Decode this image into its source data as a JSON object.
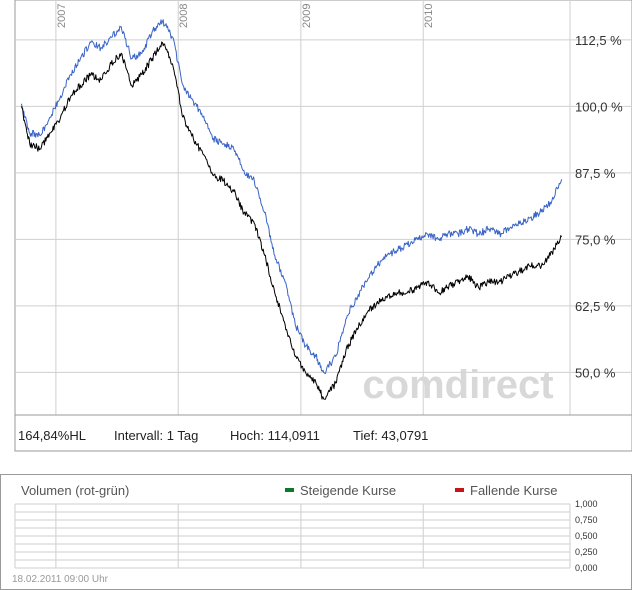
{
  "chart_data": [
    {
      "type": "line",
      "x": [
        "2006-09-20",
        "2006-10-15",
        "2006-11-15",
        "2006-12-15",
        "2007-01-15",
        "2007-02-15",
        "2007-03-15",
        "2007-04-15",
        "2007-05-15",
        "2007-06-15",
        "2007-07-15",
        "2007-08-15",
        "2007-09-15",
        "2007-10-15",
        "2007-11-15",
        "2007-12-15",
        "2008-01-15",
        "2008-02-15",
        "2008-03-15",
        "2008-04-15",
        "2008-05-15",
        "2008-06-15",
        "2008-07-15",
        "2008-08-15",
        "2008-09-15",
        "2008-10-15",
        "2008-11-15",
        "2008-12-15",
        "2009-01-15",
        "2009-02-15",
        "2009-03-10",
        "2009-04-15",
        "2009-05-15",
        "2009-06-15",
        "2009-07-15",
        "2009-08-15",
        "2009-09-15",
        "2009-10-15",
        "2009-11-15",
        "2009-12-15",
        "2010-01-15",
        "2010-02-15",
        "2010-03-15",
        "2010-04-15",
        "2010-05-15",
        "2010-06-15",
        "2010-07-15",
        "2010-08-15",
        "2010-09-15",
        "2010-10-15",
        "2010-11-15",
        "2010-12-15",
        "2011-01-15",
        "2011-02-18"
      ],
      "series": [
        {
          "color": "#3a64c8",
          "values": [
            100.5,
            95,
            94.5,
            98,
            102,
            106,
            109,
            112,
            111,
            113,
            115,
            109,
            110,
            114,
            116,
            113,
            104,
            101,
            98,
            94,
            93,
            92,
            88,
            86,
            80,
            72,
            67,
            59,
            55,
            53,
            50,
            53,
            60,
            64,
            67,
            70,
            72,
            73,
            74,
            75,
            76,
            75,
            76,
            76,
            77,
            76,
            77,
            76,
            77,
            78,
            79,
            80,
            82,
            86.3
          ]
        },
        {
          "color": "#000000",
          "values": [
            100,
            93,
            92,
            95,
            98,
            102,
            104,
            106,
            105,
            108,
            110,
            104,
            106,
            109,
            112,
            108,
            98,
            94,
            91,
            87,
            86,
            84,
            80,
            78,
            72,
            65,
            59,
            53,
            50,
            48,
            45,
            48,
            54,
            58,
            61,
            63,
            64,
            65,
            65,
            66,
            67,
            65,
            66,
            67,
            68,
            66,
            67,
            67,
            68,
            69,
            70,
            70,
            72,
            75.5
          ]
        }
      ],
      "ylim": [
        42,
        120
      ],
      "y_ticks": [
        "112,5 %",
        "100,0 %",
        "87,5 %",
        "75,0 %",
        "62,5 %",
        "50,0 %"
      ],
      "x_ticks": [
        "2007",
        "2008",
        "2009",
        "2010"
      ],
      "grid": true,
      "stats": {
        "hl": "164,84%HL",
        "interval": "Intervall: 1 Tag",
        "high": "Hoch: 114,0911",
        "low": "Tief: 43,0791"
      },
      "watermark": "comdirect"
    },
    {
      "type": "bar",
      "title": "Volumen (rot-grün)",
      "series": [
        {
          "name": "Steigende Kurse",
          "color": "#0a7a2a",
          "values": []
        },
        {
          "name": "Fallende Kurse",
          "color": "#c81414",
          "values": []
        }
      ],
      "y_ticks": [
        "1,000",
        "0,750",
        "0,500",
        "0,250",
        "0,000"
      ],
      "grid": true,
      "timestamp": "18.02.2011 09:00 Uhr"
    }
  ]
}
